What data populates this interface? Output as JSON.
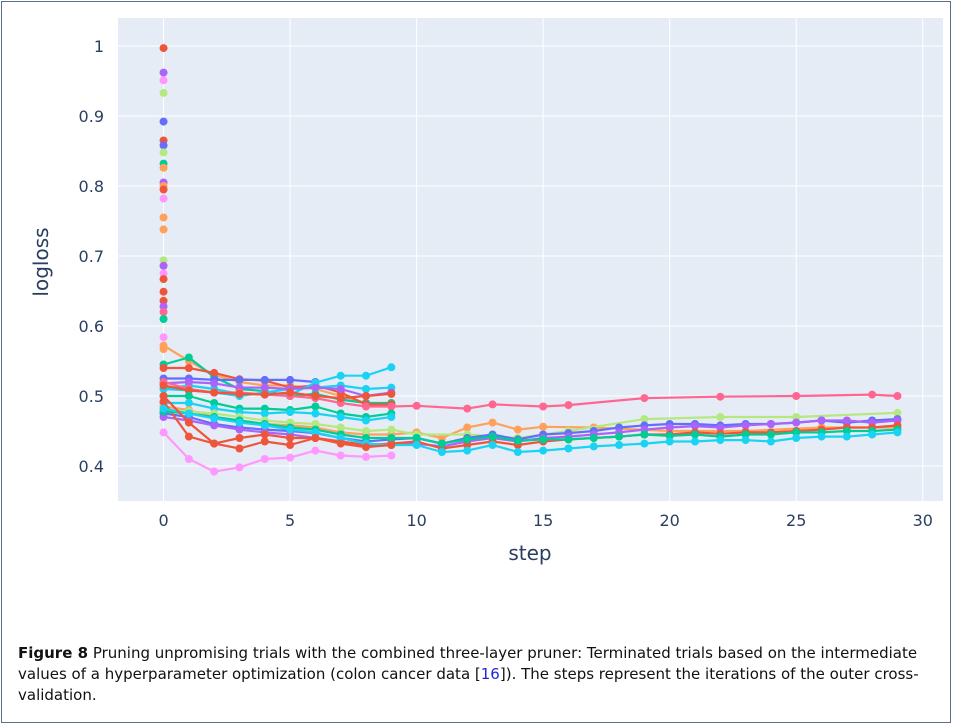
{
  "figure": {
    "number_label": "Figure 8",
    "caption_before_ref": " Pruning unpromising trials with the combined three-layer pruner: Terminated trials based on the intermediate values of a hyperparameter optimization (colon cancer data [",
    "caption_ref": "16",
    "caption_after_ref": "]). The steps represent the iterations of the outer cross-validation."
  },
  "chart_data": {
    "type": "line",
    "xlabel": "step",
    "ylabel": "logloss",
    "xlim": [
      -1.8,
      30.8
    ],
    "ylim": [
      0.35,
      1.04
    ],
    "xticks": [
      0,
      5,
      10,
      15,
      20,
      25,
      30
    ],
    "yticks": [
      0.4,
      0.5,
      0.6,
      0.7,
      0.8,
      0.9,
      1
    ],
    "ytick_labels": [
      "0.4",
      "0.5",
      "0.6",
      "0.7",
      "0.8",
      "0.9",
      "1"
    ],
    "grid": true,
    "plot_background": "#e5ecf6",
    "grid_color": "#ffffff",
    "series": [
      {
        "color": "#ef553b",
        "x": [
          0
        ],
        "y": [
          0.997
        ]
      },
      {
        "color": "#ab63fa",
        "x": [
          0
        ],
        "y": [
          0.962
        ]
      },
      {
        "color": "#ff97ff",
        "x": [
          0
        ],
        "y": [
          0.951
        ]
      },
      {
        "color": "#b6e880",
        "x": [
          0
        ],
        "y": [
          0.933
        ]
      },
      {
        "color": "#636efa",
        "x": [
          0
        ],
        "y": [
          0.892
        ]
      },
      {
        "color": "#ef553b",
        "x": [
          0
        ],
        "y": [
          0.865
        ]
      },
      {
        "color": "#636efa",
        "x": [
          0
        ],
        "y": [
          0.858
        ]
      },
      {
        "color": "#b6e880",
        "x": [
          0
        ],
        "y": [
          0.848
        ]
      },
      {
        "color": "#00cc96",
        "x": [
          0
        ],
        "y": [
          0.832
        ]
      },
      {
        "color": "#ffa15a",
        "x": [
          0
        ],
        "y": [
          0.826
        ]
      },
      {
        "color": "#ab63fa",
        "x": [
          0
        ],
        "y": [
          0.805
        ]
      },
      {
        "color": "#ffa15a",
        "x": [
          0
        ],
        "y": [
          0.8
        ]
      },
      {
        "color": "#ef553b",
        "x": [
          0
        ],
        "y": [
          0.795
        ]
      },
      {
        "color": "#ff97ff",
        "x": [
          0
        ],
        "y": [
          0.782
        ]
      },
      {
        "color": "#ffa15a",
        "x": [
          0
        ],
        "y": [
          0.755
        ]
      },
      {
        "color": "#ffa15a",
        "x": [
          0
        ],
        "y": [
          0.738
        ]
      },
      {
        "color": "#b6e880",
        "x": [
          0
        ],
        "y": [
          0.694
        ]
      },
      {
        "color": "#ab63fa",
        "x": [
          0
        ],
        "y": [
          0.686
        ]
      },
      {
        "color": "#ff97ff",
        "x": [
          0
        ],
        "y": [
          0.675
        ]
      },
      {
        "color": "#ef553b",
        "x": [
          0
        ],
        "y": [
          0.667
        ]
      },
      {
        "color": "#ef553b",
        "x": [
          0
        ],
        "y": [
          0.649
        ]
      },
      {
        "color": "#ef553b",
        "x": [
          0
        ],
        "y": [
          0.636
        ]
      },
      {
        "color": "#ab63fa",
        "x": [
          0
        ],
        "y": [
          0.628
        ]
      },
      {
        "color": "#ff6692",
        "x": [
          0
        ],
        "y": [
          0.62
        ]
      },
      {
        "color": "#00cc96",
        "x": [
          0
        ],
        "y": [
          0.61
        ]
      },
      {
        "color": "#ff97ff",
        "x": [
          0
        ],
        "y": [
          0.584
        ]
      },
      {
        "color": "#ffa15a",
        "x": [
          0
        ],
        "y": [
          0.567
        ]
      },
      {
        "color": "#ffa15a",
        "x": [
          0,
          1,
          2,
          3,
          4,
          5,
          6,
          7,
          8,
          9
        ],
        "y": [
          0.572,
          0.55,
          0.53,
          0.52,
          0.515,
          0.515,
          0.51,
          0.5,
          0.49,
          0.488
        ]
      },
      {
        "color": "#00cc96",
        "x": [
          0,
          1,
          2,
          3,
          4,
          5,
          6,
          7,
          8,
          9
        ],
        "y": [
          0.545,
          0.555,
          0.527,
          0.51,
          0.507,
          0.5,
          0.503,
          0.495,
          0.49,
          0.49
        ]
      },
      {
        "color": "#ef553b",
        "x": [
          0,
          1,
          2,
          3,
          4,
          5,
          6,
          7,
          8,
          9
        ],
        "y": [
          0.54,
          0.54,
          0.533,
          0.524,
          0.522,
          0.512,
          0.515,
          0.505,
          0.488,
          0.488
        ]
      },
      {
        "color": "#636efa",
        "x": [
          0,
          1,
          2,
          3,
          4,
          5,
          6
        ],
        "y": [
          0.525,
          0.525,
          0.523,
          0.523,
          0.523,
          0.523,
          0.52
        ]
      },
      {
        "color": "#19d3f3",
        "x": [
          0,
          1,
          2,
          3,
          4,
          5,
          6,
          7,
          8,
          9
        ],
        "y": [
          0.51,
          0.515,
          0.51,
          0.503,
          0.502,
          0.502,
          0.519,
          0.529,
          0.529,
          0.541
        ]
      },
      {
        "color": "#19d3f3",
        "x": [
          0,
          1,
          2,
          3,
          4,
          5,
          6,
          7,
          8,
          9
        ],
        "y": [
          0.51,
          0.508,
          0.505,
          0.5,
          0.505,
          0.51,
          0.512,
          0.515,
          0.51,
          0.512
        ]
      },
      {
        "color": "#ab63fa",
        "x": [
          0,
          1,
          2,
          3,
          4,
          5,
          6,
          7,
          8,
          9
        ],
        "y": [
          0.518,
          0.52,
          0.518,
          0.512,
          0.512,
          0.51,
          0.512,
          0.51,
          0.5,
          0.505
        ]
      },
      {
        "color": "#ff6692",
        "x": [
          0,
          1,
          2,
          3,
          4,
          5,
          6,
          7,
          8,
          9,
          10,
          12,
          13,
          15,
          16,
          19,
          22,
          25,
          28,
          29
        ],
        "y": [
          0.52,
          0.51,
          0.505,
          0.505,
          0.502,
          0.5,
          0.497,
          0.49,
          0.485,
          0.485,
          0.486,
          0.482,
          0.488,
          0.485,
          0.487,
          0.497,
          0.499,
          0.5,
          0.502,
          0.5
        ]
      },
      {
        "color": "#ef553b",
        "x": [
          0,
          1,
          2,
          3,
          4,
          5,
          6,
          7,
          8,
          9
        ],
        "y": [
          0.515,
          0.508,
          0.505,
          0.503,
          0.502,
          0.505,
          0.5,
          0.497,
          0.5,
          0.503
        ]
      },
      {
        "color": "#00cc96",
        "x": [
          0,
          1,
          2,
          3,
          4,
          5,
          6,
          7,
          8,
          9
        ],
        "y": [
          0.5,
          0.5,
          0.49,
          0.482,
          0.482,
          0.48,
          0.485,
          0.475,
          0.47,
          0.475
        ]
      },
      {
        "color": "#19d3f3",
        "x": [
          0,
          1,
          2,
          3,
          4,
          5,
          6,
          7,
          8,
          9
        ],
        "y": [
          0.49,
          0.49,
          0.482,
          0.477,
          0.475,
          0.477,
          0.475,
          0.47,
          0.465,
          0.47
        ]
      },
      {
        "color": "#ffa15a",
        "x": [
          0,
          1,
          2,
          3,
          4,
          5,
          6,
          7,
          8,
          9,
          10,
          11,
          12,
          13,
          14,
          15,
          17,
          20,
          23,
          26,
          29
        ],
        "y": [
          0.485,
          0.48,
          0.47,
          0.465,
          0.46,
          0.458,
          0.455,
          0.448,
          0.445,
          0.445,
          0.448,
          0.44,
          0.455,
          0.462,
          0.452,
          0.456,
          0.455,
          0.45,
          0.45,
          0.455,
          0.455
        ]
      },
      {
        "color": "#b6e880",
        "x": [
          0,
          1,
          2,
          3,
          4,
          5,
          6,
          7,
          8,
          9,
          10,
          12,
          14,
          16,
          19,
          22,
          25,
          29
        ],
        "y": [
          0.48,
          0.478,
          0.475,
          0.47,
          0.465,
          0.462,
          0.46,
          0.455,
          0.45,
          0.452,
          0.445,
          0.445,
          0.44,
          0.45,
          0.467,
          0.47,
          0.47,
          0.476
        ]
      },
      {
        "color": "#636efa",
        "x": [
          0,
          1,
          2,
          3,
          4,
          5,
          6,
          7,
          8,
          9,
          10,
          11,
          12,
          13,
          14,
          15,
          16,
          17,
          18,
          19,
          20,
          21,
          22,
          23,
          24,
          25,
          26,
          27,
          28,
          29
        ],
        "y": [
          0.475,
          0.47,
          0.46,
          0.455,
          0.452,
          0.45,
          0.447,
          0.44,
          0.435,
          0.438,
          0.44,
          0.432,
          0.44,
          0.445,
          0.438,
          0.445,
          0.447,
          0.45,
          0.455,
          0.458,
          0.46,
          0.46,
          0.458,
          0.46,
          0.46,
          0.462,
          0.465,
          0.462,
          0.465,
          0.467
        ]
      },
      {
        "color": "#ab63fa",
        "x": [
          0,
          1,
          2,
          3,
          4,
          5,
          6,
          7,
          8,
          9,
          10,
          11,
          12,
          13,
          14,
          15,
          16,
          17,
          18,
          19,
          20,
          21,
          22,
          23,
          24,
          25,
          26,
          27,
          28,
          29
        ],
        "y": [
          0.47,
          0.465,
          0.458,
          0.452,
          0.448,
          0.445,
          0.44,
          0.435,
          0.43,
          0.432,
          0.432,
          0.428,
          0.435,
          0.44,
          0.435,
          0.44,
          0.442,
          0.445,
          0.448,
          0.452,
          0.455,
          0.457,
          0.455,
          0.458,
          0.46,
          0.462,
          0.465,
          0.465,
          0.462,
          0.465
        ]
      },
      {
        "color": "#ef553b",
        "x": [
          0,
          1,
          2,
          3,
          4,
          5,
          6,
          7,
          8,
          9,
          10,
          11,
          12,
          13,
          14,
          15,
          16,
          17,
          18,
          19,
          20,
          21,
          22,
          23,
          24,
          25,
          26,
          27,
          28,
          29
        ],
        "y": [
          0.492,
          0.442,
          0.432,
          0.44,
          0.445,
          0.44,
          0.44,
          0.435,
          0.43,
          0.432,
          0.435,
          0.425,
          0.43,
          0.435,
          0.43,
          0.435,
          0.438,
          0.44,
          0.442,
          0.445,
          0.445,
          0.448,
          0.446,
          0.448,
          0.448,
          0.45,
          0.452,
          0.455,
          0.455,
          0.458
        ]
      },
      {
        "color": "#00cc96",
        "x": [
          0,
          1,
          2,
          3,
          4,
          5,
          6,
          7,
          8,
          9,
          10,
          11,
          12,
          13,
          14,
          15,
          16,
          17,
          18,
          19,
          20,
          21,
          22,
          23,
          24,
          25,
          26,
          27,
          28,
          29
        ],
        "y": [
          0.478,
          0.475,
          0.47,
          0.465,
          0.46,
          0.455,
          0.452,
          0.445,
          0.44,
          0.44,
          0.44,
          0.432,
          0.438,
          0.442,
          0.436,
          0.438,
          0.438,
          0.44,
          0.442,
          0.445,
          0.443,
          0.445,
          0.442,
          0.445,
          0.445,
          0.448,
          0.448,
          0.45,
          0.45,
          0.452
        ]
      },
      {
        "color": "#19d3f3",
        "x": [
          0,
          1,
          2,
          3,
          4,
          5,
          6,
          7,
          8,
          9,
          10,
          11,
          12,
          13,
          14,
          15,
          16,
          17,
          18,
          19,
          20,
          21,
          22,
          23,
          24,
          25,
          26,
          27,
          28,
          29
        ],
        "y": [
          0.482,
          0.475,
          0.468,
          0.462,
          0.458,
          0.452,
          0.448,
          0.44,
          0.432,
          0.43,
          0.43,
          0.42,
          0.422,
          0.43,
          0.42,
          0.422,
          0.425,
          0.428,
          0.43,
          0.432,
          0.435,
          0.435,
          0.437,
          0.437,
          0.435,
          0.44,
          0.442,
          0.442,
          0.445,
          0.448
        ]
      },
      {
        "color": "#ff97ff",
        "x": [
          0,
          1,
          2,
          3,
          4,
          5,
          6,
          7,
          8,
          9
        ],
        "y": [
          0.448,
          0.41,
          0.392,
          0.398,
          0.41,
          0.412,
          0.422,
          0.415,
          0.413,
          0.415
        ]
      },
      {
        "color": "#ef553b",
        "x": [
          0,
          1,
          2,
          3,
          4,
          5,
          6,
          7,
          8,
          9
        ],
        "y": [
          0.5,
          0.462,
          0.432,
          0.425,
          0.435,
          0.43,
          0.44,
          0.432,
          0.427,
          0.43
        ]
      }
    ]
  }
}
